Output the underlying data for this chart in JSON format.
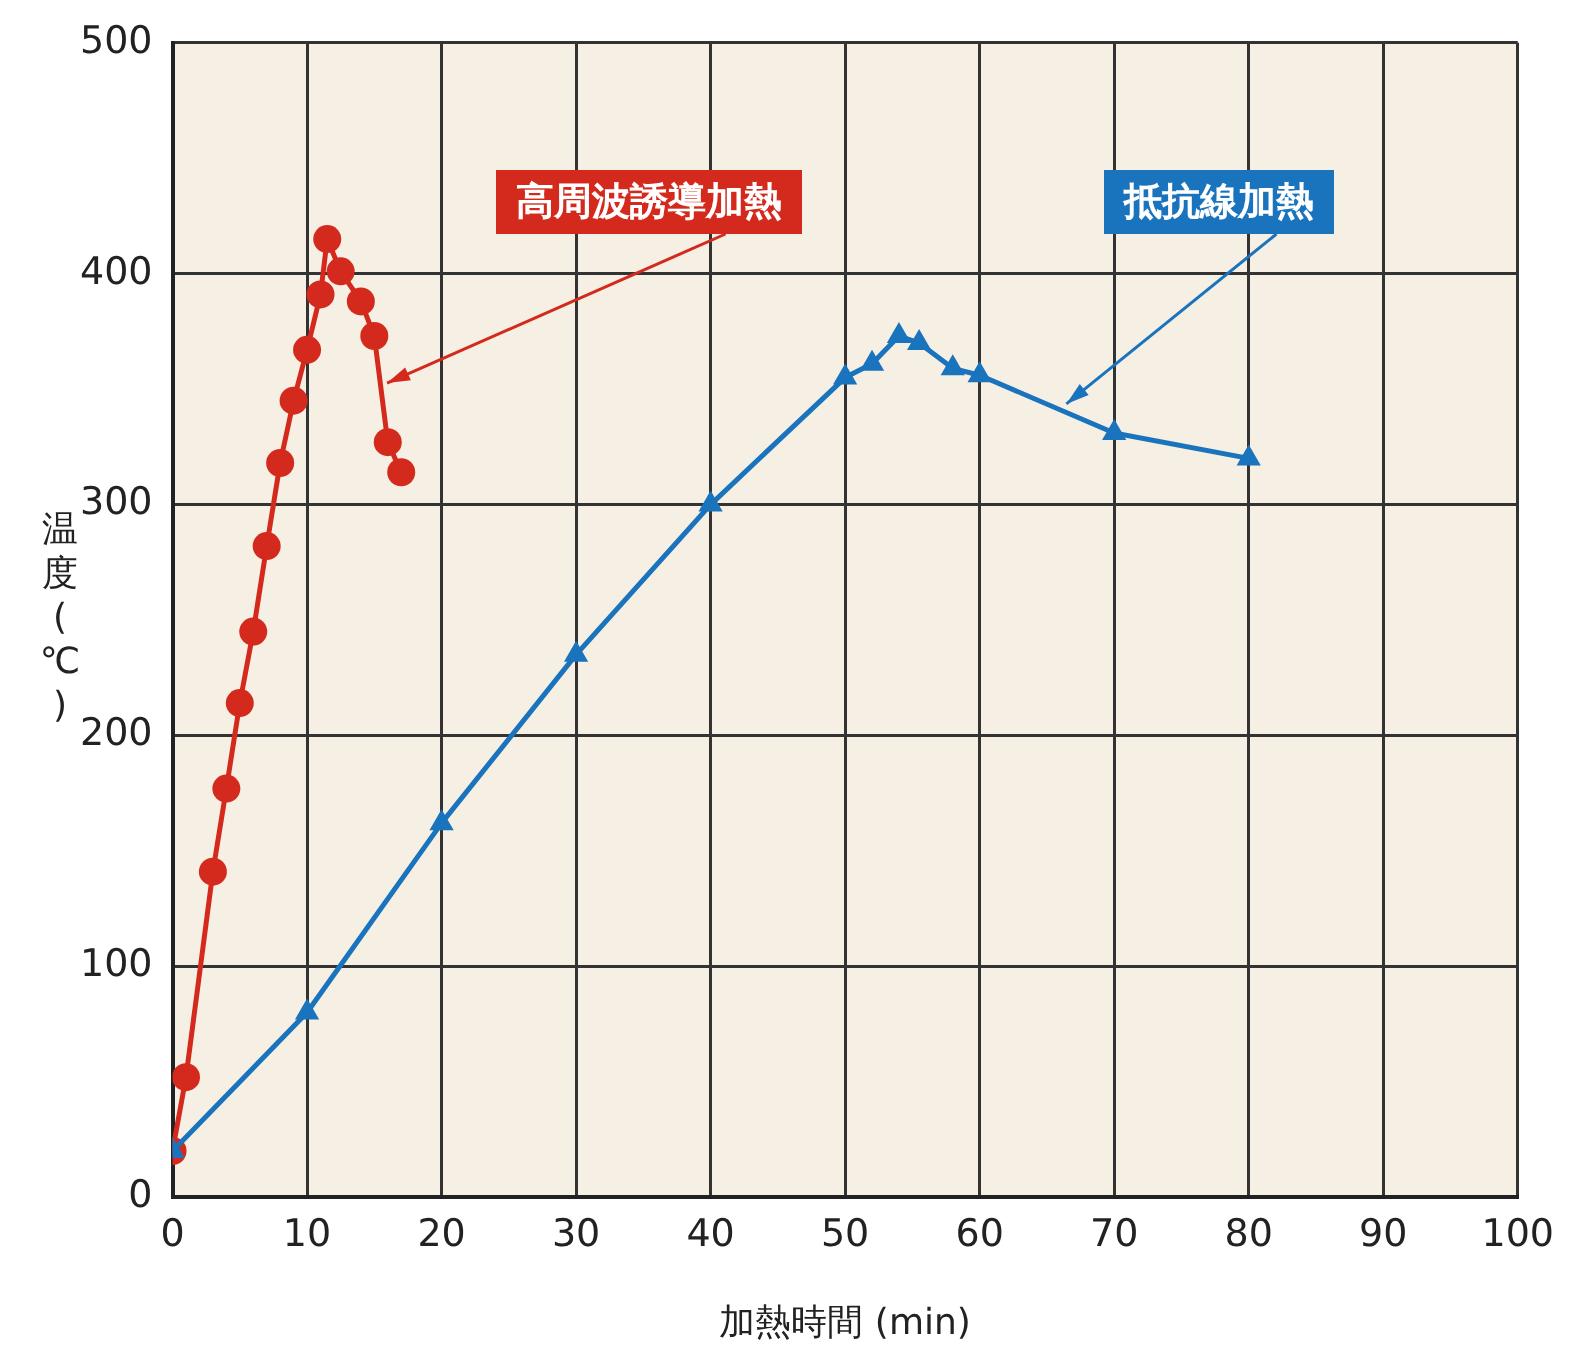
{
  "chart_data": {
    "type": "line",
    "xlabel": "加熱時間 (min)",
    "ylabel": "温度(℃)",
    "xlim": [
      0,
      100
    ],
    "xticks": [
      0,
      10,
      20,
      30,
      40,
      50,
      60,
      70,
      80,
      90,
      100
    ],
    "ylim": [
      0,
      500
    ],
    "yticks": [
      0,
      100,
      200,
      300,
      400,
      500
    ],
    "grid": true,
    "legend": false,
    "series": [
      {
        "name": "高周波誘導加熱",
        "color": "#d42a1e",
        "marker": "circle",
        "x": [
          0,
          1,
          3,
          4,
          5,
          6,
          7,
          8,
          9,
          10,
          11,
          11.5,
          12.5,
          14,
          15,
          16,
          17
        ],
        "values": [
          20,
          52,
          141,
          177,
          214,
          245,
          282,
          318,
          345,
          367,
          391,
          415,
          401,
          388,
          373,
          327,
          314
        ]
      },
      {
        "name": "抵抗線加熱",
        "color": "#1a73bd",
        "marker": "triangle",
        "x": [
          0,
          10,
          20,
          30,
          40,
          50,
          52,
          54,
          55.5,
          58,
          60,
          70,
          80
        ],
        "values": [
          20,
          80,
          162,
          235,
          300,
          355,
          361,
          373,
          370,
          359,
          356,
          331,
          320
        ]
      }
    ]
  }
}
